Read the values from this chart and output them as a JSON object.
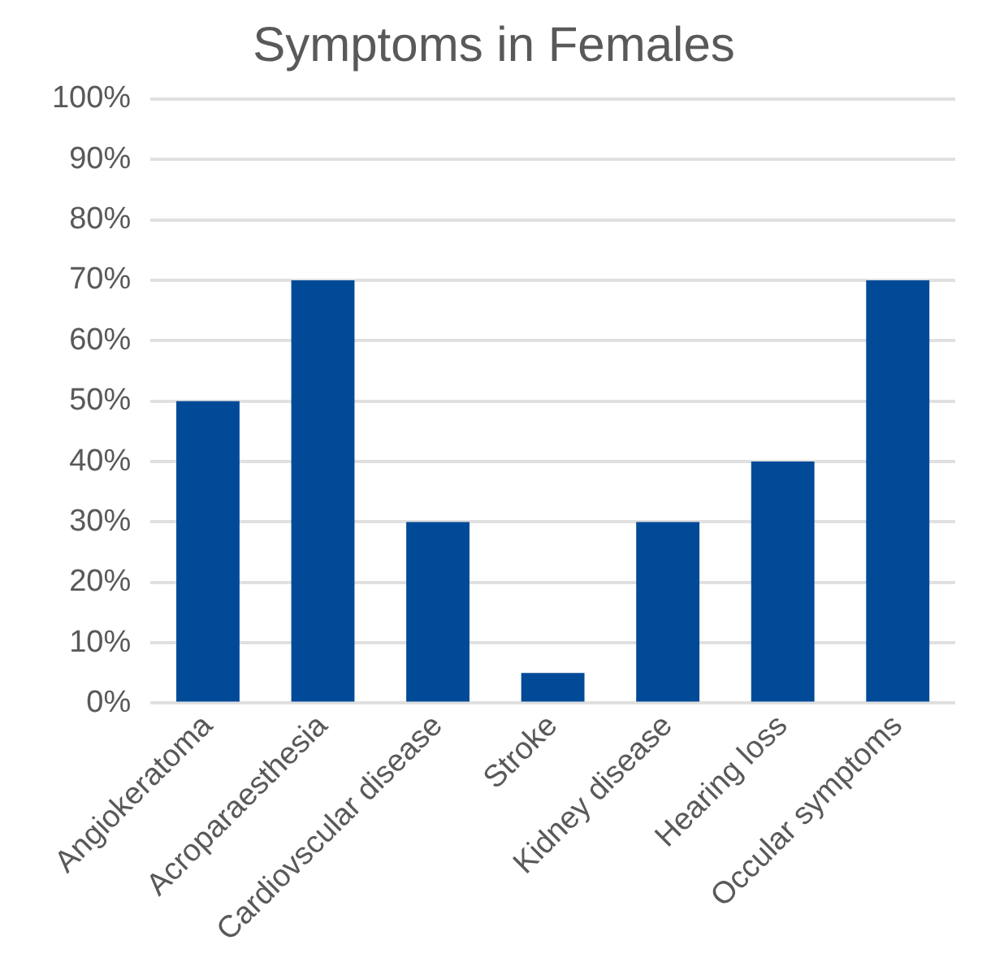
{
  "chart_data": {
    "type": "bar",
    "title": "Symptoms in Females",
    "categories": [
      "Angiokeratoma",
      "Acroparaesthesia",
      "Cardiovscular disease",
      "Stroke",
      "Kidney disease",
      "Hearing loss",
      "Occular symptoms"
    ],
    "values": [
      50,
      70,
      30,
      5,
      30,
      40,
      70
    ],
    "color": "#004a98",
    "ylim": [
      0,
      100
    ],
    "yticks": [
      {
        "value": 0,
        "label": "0%"
      },
      {
        "value": 10,
        "label": "10%"
      },
      {
        "value": 20,
        "label": "20%"
      },
      {
        "value": 30,
        "label": "30%"
      },
      {
        "value": 40,
        "label": "40%"
      },
      {
        "value": 50,
        "label": "50%"
      },
      {
        "value": 60,
        "label": "60%"
      },
      {
        "value": 70,
        "label": "70%"
      },
      {
        "value": 80,
        "label": "80%"
      },
      {
        "value": 90,
        "label": "90%"
      },
      {
        "value": 100,
        "label": "100%"
      }
    ],
    "grid": "y"
  }
}
